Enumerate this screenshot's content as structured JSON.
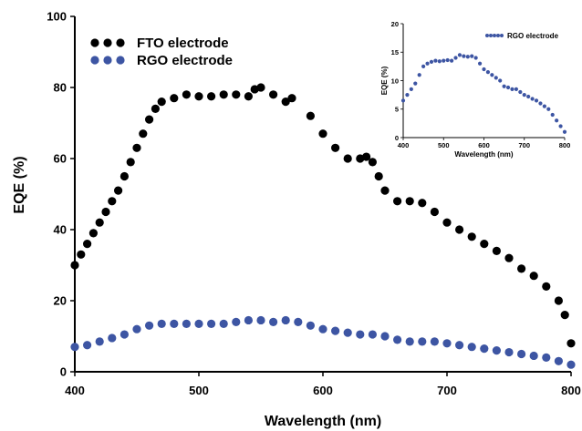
{
  "colors": {
    "fto": "#000000",
    "rgo": "#3d55a3"
  },
  "chart_data": [
    {
      "type": "scatter",
      "xlabel": "Wavelength (nm)",
      "ylabel": "EQE (%)",
      "xlim": [
        400,
        800
      ],
      "ylim": [
        0,
        100
      ],
      "xticks": [
        400,
        500,
        600,
        700,
        800
      ],
      "yticks": [
        0,
        20,
        40,
        60,
        80,
        100
      ],
      "legend_position": "top-left",
      "series": [
        {
          "name": "FTO electrode",
          "x": [
            400,
            405,
            410,
            415,
            420,
            425,
            430,
            435,
            440,
            445,
            450,
            455,
            460,
            465,
            470,
            480,
            490,
            500,
            510,
            520,
            530,
            540,
            545,
            550,
            560,
            570,
            575,
            590,
            600,
            610,
            620,
            630,
            635,
            640,
            645,
            650,
            660,
            670,
            680,
            690,
            700,
            710,
            720,
            730,
            740,
            750,
            760,
            770,
            780,
            790,
            795,
            800
          ],
          "y": [
            30,
            33,
            36,
            39,
            42,
            45,
            48,
            51,
            55,
            59,
            63,
            67,
            71,
            74,
            76,
            77,
            78,
            77.5,
            77.5,
            78,
            78,
            77.5,
            79.5,
            80,
            78,
            76,
            77,
            72,
            67,
            63,
            60,
            60,
            60.5,
            59,
            55,
            51,
            48,
            48,
            47.5,
            45,
            42,
            40,
            38,
            36,
            34,
            32,
            29,
            27,
            24,
            20,
            16,
            8
          ]
        },
        {
          "name": "RGO electrode",
          "x": [
            400,
            410,
            420,
            430,
            440,
            450,
            460,
            470,
            480,
            490,
            500,
            510,
            520,
            530,
            540,
            550,
            560,
            570,
            580,
            590,
            600,
            610,
            620,
            630,
            640,
            650,
            660,
            670,
            680,
            690,
            700,
            710,
            720,
            730,
            740,
            750,
            760,
            770,
            780,
            790,
            800
          ],
          "y": [
            7,
            7.5,
            8.5,
            9.5,
            10.5,
            12,
            13,
            13.5,
            13.5,
            13.5,
            13.5,
            13.5,
            13.5,
            14,
            14.5,
            14.5,
            14,
            14.5,
            14,
            13,
            12,
            11.5,
            11,
            10.5,
            10.5,
            10,
            9,
            8.5,
            8.5,
            8.5,
            8,
            7.5,
            7,
            6.5,
            6,
            5.5,
            5,
            4.5,
            4,
            3,
            2
          ]
        }
      ]
    },
    {
      "type": "scatter",
      "xlabel": "Wavelength (nm)",
      "ylabel": "EQE (%)",
      "xlim": [
        400,
        800
      ],
      "ylim": [
        0,
        20
      ],
      "xticks": [
        400,
        500,
        600,
        700,
        800
      ],
      "yticks": [
        0,
        5,
        10,
        15,
        20
      ],
      "legend_position": "top-right",
      "series": [
        {
          "name": "RGO electrode",
          "x": [
            400,
            410,
            420,
            430,
            440,
            450,
            460,
            470,
            480,
            490,
            500,
            510,
            520,
            530,
            540,
            550,
            560,
            570,
            580,
            590,
            600,
            610,
            620,
            630,
            640,
            650,
            660,
            670,
            680,
            690,
            700,
            710,
            720,
            730,
            740,
            750,
            760,
            770,
            780,
            790,
            800
          ],
          "y": [
            6.5,
            7.5,
            8.5,
            9.5,
            11,
            12.5,
            13,
            13.3,
            13.5,
            13.4,
            13.5,
            13.6,
            13.5,
            14,
            14.5,
            14.3,
            14.2,
            14.3,
            14,
            13,
            12,
            11.5,
            11,
            10.5,
            10,
            9,
            8.8,
            8.5,
            8.5,
            8,
            7.5,
            7.2,
            6.8,
            6.5,
            6,
            5.5,
            5,
            4,
            3,
            2,
            1
          ]
        }
      ]
    }
  ]
}
